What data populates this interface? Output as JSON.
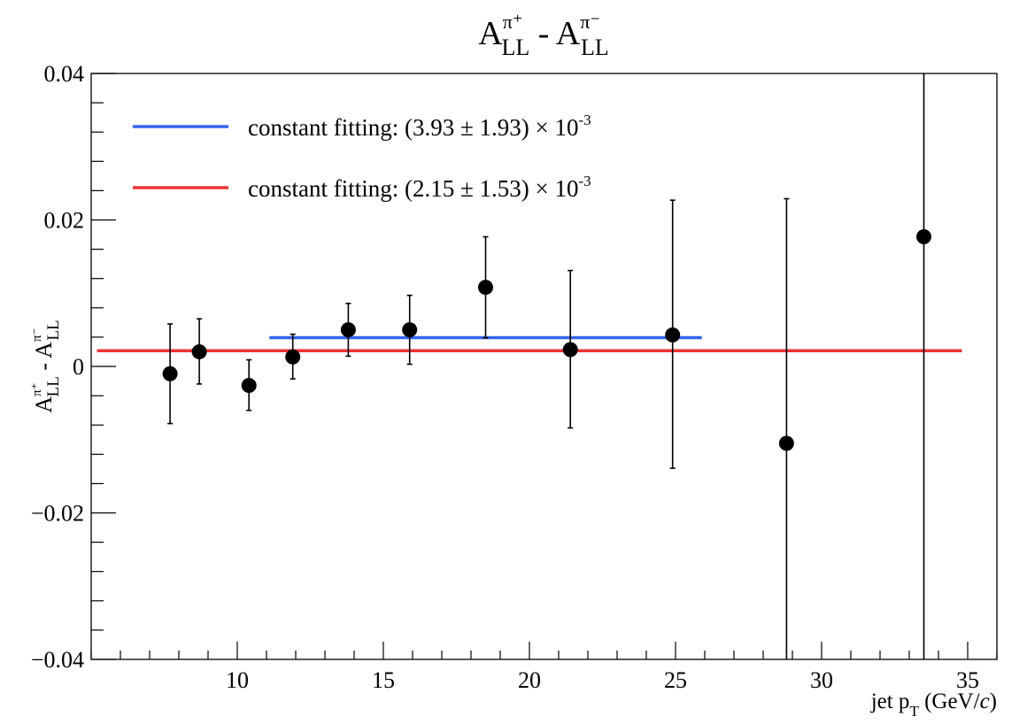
{
  "chart_data": {
    "type": "scatter",
    "title": {
      "base": "A",
      "sup1": "π⁺",
      "sub1": "LL",
      "minus": " - ",
      "sup2": "π⁻",
      "sub2": "LL"
    },
    "xlabel": {
      "pre": "jet p",
      "sub": "T",
      "post": " (GeV/",
      "italic": "c",
      "close": ")"
    },
    "ylabel": {
      "base": "A",
      "sup1": "π⁺",
      "sub1": "LL",
      "minus": " - ",
      "sup2": "π⁻",
      "sub2": "LL"
    },
    "xlim": [
      5.0,
      36.0
    ],
    "ylim": [
      -0.04,
      0.04
    ],
    "x_ticks": [
      10,
      15,
      20,
      25,
      30,
      35
    ],
    "x_tick_labels": [
      "10",
      "15",
      "20",
      "25",
      "30",
      "35"
    ],
    "x_minor_step": 1,
    "y_ticks": [
      -0.04,
      -0.02,
      0,
      0.02,
      0.04
    ],
    "y_tick_labels": [
      "−0.04",
      "−0.02",
      "0",
      "0.02",
      "0.04"
    ],
    "y_minor_step": 0.004,
    "grid": false,
    "legend_position": "top-left",
    "points": [
      {
        "x": 7.7,
        "y": -0.001,
        "err_lo": -0.0078,
        "err_hi": 0.0058
      },
      {
        "x": 8.7,
        "y": 0.002,
        "err_lo": -0.0024,
        "err_hi": 0.0065
      },
      {
        "x": 10.4,
        "y": -0.0026,
        "err_lo": -0.006,
        "err_hi": 0.0009
      },
      {
        "x": 11.9,
        "y": 0.0013,
        "err_lo": -0.0017,
        "err_hi": 0.0044
      },
      {
        "x": 13.8,
        "y": 0.005,
        "err_lo": 0.0014,
        "err_hi": 0.0086
      },
      {
        "x": 15.9,
        "y": 0.005,
        "err_lo": 0.0003,
        "err_hi": 0.0097
      },
      {
        "x": 18.5,
        "y": 0.0108,
        "err_lo": 0.0039,
        "err_hi": 0.0177
      },
      {
        "x": 21.4,
        "y": 0.0023,
        "err_lo": -0.0084,
        "err_hi": 0.0131
      },
      {
        "x": 24.9,
        "y": 0.0043,
        "err_lo": -0.0139,
        "err_hi": 0.0227
      },
      {
        "x": 28.8,
        "y": -0.0105,
        "err_lo": -0.04,
        "err_hi": 0.0229
      },
      {
        "x": 33.5,
        "y": 0.0177,
        "err_lo": -0.04,
        "err_hi": 0.04
      }
    ],
    "fits": [
      {
        "color": "#3366ee",
        "value": 0.00393,
        "x_start": 11.1,
        "x_end": 25.9,
        "legend": {
          "text": "constant fitting: (3.93 ± 1.93) × 10",
          "exp": "-3"
        }
      },
      {
        "color": "#ee3333",
        "value": 0.00215,
        "x_start": 5.2,
        "x_end": 34.8,
        "legend": {
          "text": "constant fitting: (2.15 ± 1.53) × 10",
          "exp": "-3"
        }
      }
    ]
  }
}
